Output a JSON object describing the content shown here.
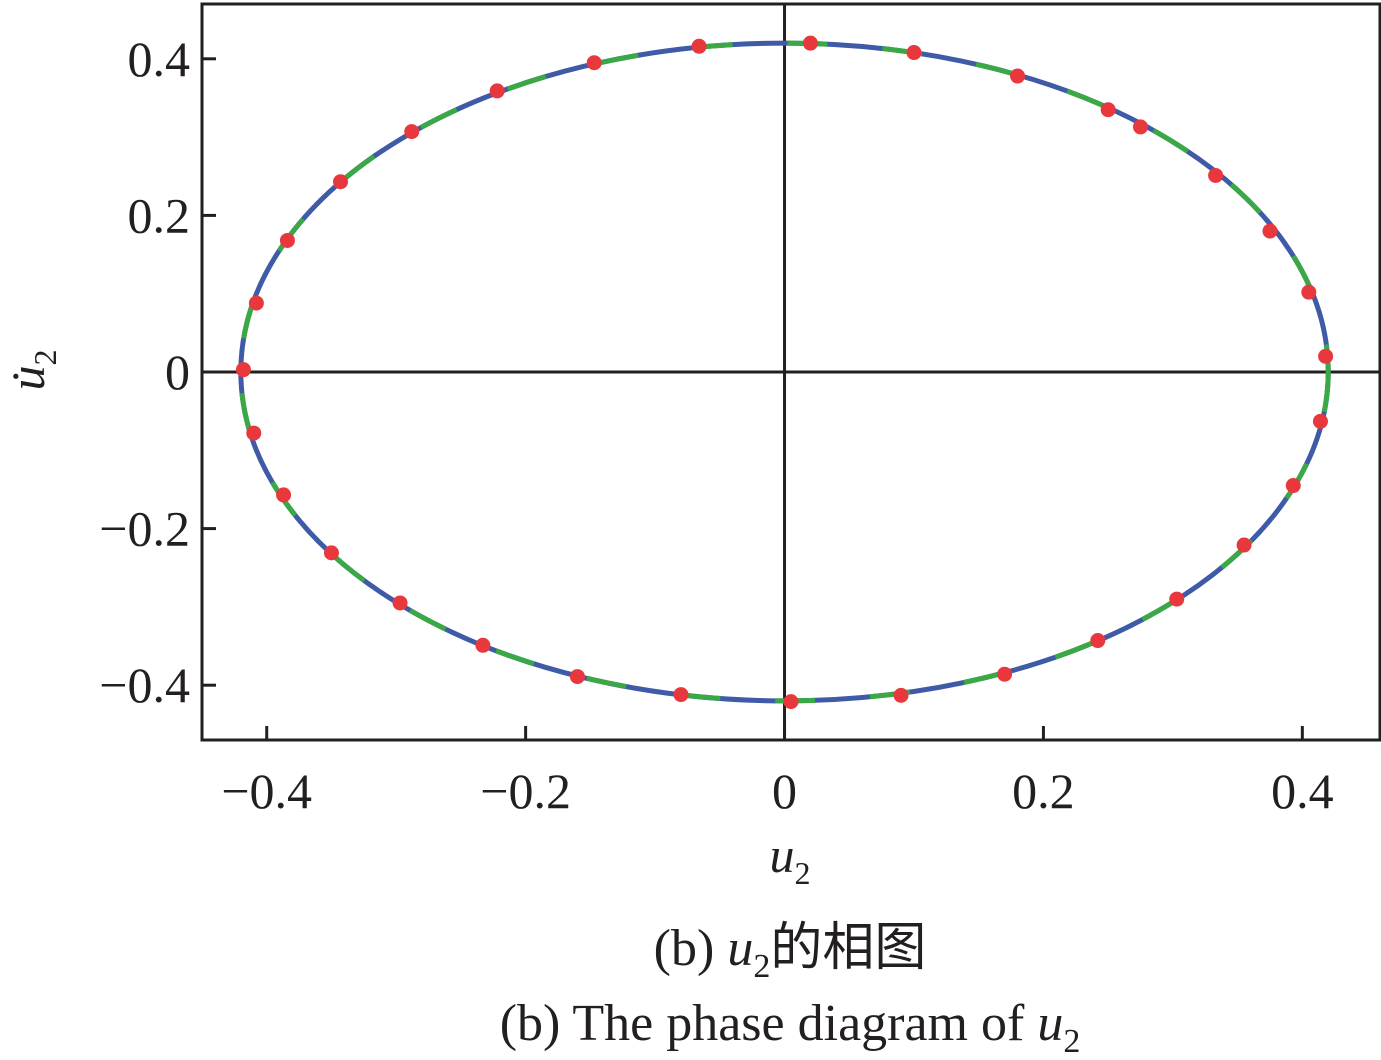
{
  "chart_data": {
    "type": "line",
    "title": "",
    "xlabel": {
      "symbol": "u",
      "subscript": "2"
    },
    "ylabel": {
      "symbol": "u̇",
      "subscript": "2"
    },
    "xlim": [
      -0.45,
      0.46
    ],
    "ylim": [
      -0.47,
      0.47
    ],
    "x_ticks": [
      -0.4,
      -0.2,
      0,
      0.2,
      0.4
    ],
    "x_tick_labels": [
      "−0.4",
      "−0.2",
      "0",
      "0.2",
      "0.4"
    ],
    "y_ticks": [
      -0.4,
      -0.2,
      0,
      0.2,
      0.4
    ],
    "y_tick_labels": [
      "−0.4",
      "−0.2",
      "0",
      "0.2",
      "0.4"
    ],
    "grid": false,
    "zero_lines": true,
    "series": [
      {
        "style": "solid",
        "color": "#3f5aa6",
        "shape": "ellipse",
        "center": [
          0,
          0
        ],
        "radius_x": 0.42,
        "radius_y": 0.42
      },
      {
        "style": "dashed",
        "color": "#3aa845",
        "shape": "ellipse",
        "center": [
          0,
          0
        ],
        "radius_x": 0.42,
        "radius_y": 0.42
      },
      {
        "style": "markers",
        "color": "#e8383d",
        "points": [
          [
            0.02,
            0.42
          ],
          [
            0.1,
            0.408
          ],
          [
            0.18,
            0.378
          ],
          [
            0.25,
            0.335
          ],
          [
            0.275,
            0.313
          ],
          [
            0.333,
            0.251
          ],
          [
            0.375,
            0.18
          ],
          [
            0.405,
            0.102
          ],
          [
            0.418,
            0.02
          ],
          [
            0.414,
            -0.063
          ],
          [
            0.393,
            -0.145
          ],
          [
            0.355,
            -0.221
          ],
          [
            0.303,
            -0.29
          ],
          [
            0.242,
            -0.343
          ],
          [
            0.17,
            -0.386
          ],
          [
            0.09,
            -0.413
          ],
          [
            0.005,
            -0.421
          ],
          [
            -0.08,
            -0.412
          ],
          [
            -0.16,
            -0.389
          ],
          [
            -0.233,
            -0.349
          ],
          [
            -0.297,
            -0.295
          ],
          [
            -0.35,
            -0.231
          ],
          [
            -0.387,
            -0.157
          ],
          [
            -0.41,
            -0.078
          ],
          [
            -0.418,
            0.003
          ],
          [
            -0.408,
            0.088
          ],
          [
            -0.384,
            0.168
          ],
          [
            -0.343,
            0.243
          ],
          [
            -0.288,
            0.307
          ],
          [
            -0.222,
            0.359
          ],
          [
            -0.147,
            0.395
          ],
          [
            -0.066,
            0.416
          ]
        ]
      }
    ]
  },
  "caption": {
    "line1_prefix": "(b) ",
    "line1_var": "u",
    "line1_sub": "2",
    "line1_suffix": "的相图",
    "line2_prefix": "(b) The phase diagram of ",
    "line2_var": "u",
    "line2_sub": "2"
  },
  "colors": {
    "axis": "#231f20",
    "solid_curve": "#3f5aa6",
    "dashed_curve": "#3aa845",
    "markers": "#e8383d"
  }
}
